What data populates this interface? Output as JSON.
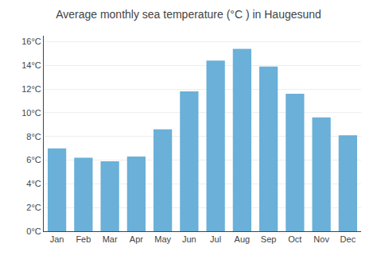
{
  "chart_data": {
    "type": "bar",
    "title": "Average monthly sea temperature (°C ) in Haugesund",
    "categories": [
      "Jan",
      "Feb",
      "Mar",
      "Apr",
      "May",
      "Jun",
      "Jul",
      "Aug",
      "Sep",
      "Oct",
      "Nov",
      "Dec"
    ],
    "values": [
      7.0,
      6.2,
      5.9,
      6.3,
      8.6,
      11.8,
      14.4,
      15.4,
      13.9,
      11.6,
      9.6,
      8.1
    ],
    "color": "#6ab0d8",
    "ylim": [
      0,
      16.5
    ],
    "yticks": [
      {
        "value": 0,
        "label": "0°C"
      },
      {
        "value": 2,
        "label": "2°C"
      },
      {
        "value": 4,
        "label": "4°C"
      },
      {
        "value": 6,
        "label": "6°C"
      },
      {
        "value": 8,
        "label": "8°C"
      },
      {
        "value": 10,
        "label": "10°C"
      },
      {
        "value": 12,
        "label": "12°C"
      },
      {
        "value": 14,
        "label": "14°C"
      },
      {
        "value": 16,
        "label": "16°C"
      }
    ],
    "grid": true
  }
}
